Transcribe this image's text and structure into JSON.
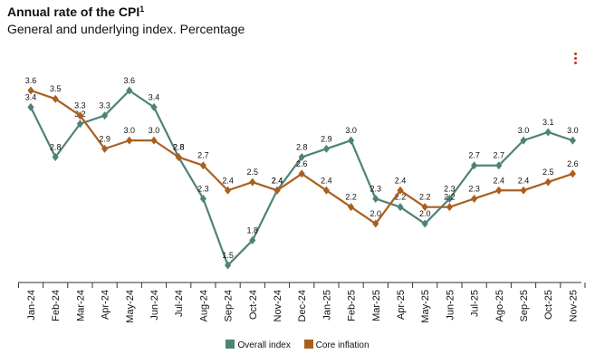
{
  "header": {
    "title": "Annual rate of the CPI",
    "title_sup": "1",
    "subtitle": "General and underlying index. Percentage"
  },
  "menu": {
    "icon": "vertical-dots-menu-icon"
  },
  "colors": {
    "overall": "#4e8376",
    "core": "#a9601f",
    "axis": "#333333"
  },
  "chart_data": {
    "type": "line",
    "title": "Annual rate of the CPI",
    "subtitle": "General and underlying index. Percentage",
    "categories": [
      "Jan-24",
      "Feb-24",
      "Mar-24",
      "Apr-24",
      "May-24",
      "Jun-24",
      "Jul-24",
      "Aug-24",
      "Sep-24",
      "Oct-24",
      "Nov-24",
      "Dec-24",
      "Jan-25",
      "Feb-25",
      "Mar-25",
      "Apr-25",
      "May-25",
      "Jun-25",
      "Jul-25",
      "Ago-25",
      "Sep-25",
      "Oct-25",
      "Nov-25"
    ],
    "series": [
      {
        "name": "Overall index",
        "values": [
          3.4,
          2.8,
          3.2,
          3.3,
          3.6,
          3.4,
          2.8,
          2.3,
          1.5,
          1.8,
          2.4,
          2.8,
          2.9,
          3.0,
          2.3,
          2.2,
          2.0,
          2.3,
          2.7,
          2.7,
          3.0,
          3.1,
          3.0
        ]
      },
      {
        "name": "Core inflation",
        "values": [
          3.6,
          3.5,
          3.3,
          2.9,
          3.0,
          3.0,
          2.8,
          2.7,
          2.4,
          2.5,
          2.4,
          2.6,
          2.4,
          2.2,
          2.0,
          2.4,
          2.2,
          2.2,
          2.3,
          2.4,
          2.4,
          2.5,
          2.6
        ]
      }
    ],
    "ylim": [
      1.3,
      3.85
    ],
    "grid": false,
    "legend_position": "bottom"
  }
}
